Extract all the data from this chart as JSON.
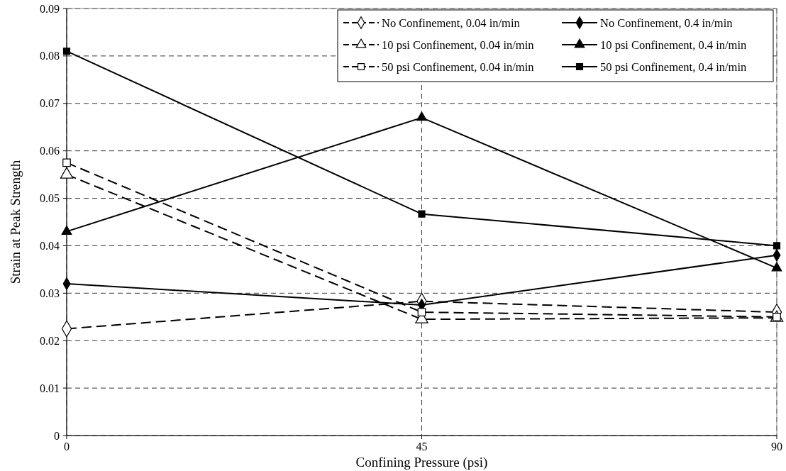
{
  "chart_data": {
    "type": "line",
    "xlabel": "Confining Pressure (psi)",
    "ylabel": "Strain at Peak Strength",
    "x": [
      0,
      45,
      90
    ],
    "xlim": [
      0,
      90
    ],
    "xticks": [
      0,
      45,
      90
    ],
    "ylim": [
      0,
      0.09
    ],
    "yticks": [
      0,
      0.01,
      0.02,
      0.03,
      0.04,
      0.05,
      0.06,
      0.07,
      0.08,
      0.09
    ],
    "grid": true,
    "legend": "top right",
    "series": [
      {
        "name": "No Confinement, 0.04 in/min",
        "color": "#000000",
        "marker": "diamond",
        "line_style": "dashed",
        "values": [
          0.0225,
          0.0283,
          0.026
        ]
      },
      {
        "name": "No Confinement, 0.4 in/min",
        "color": "#000000",
        "marker": "diamond",
        "line_style": "solid",
        "values": [
          0.032,
          0.0275,
          0.038
        ]
      },
      {
        "name": "10 psi Confinement, 0.04 in/min",
        "color": "#000000",
        "marker": "triangle",
        "line_style": "dashed",
        "values": [
          0.055,
          0.0245,
          0.0248
        ]
      },
      {
        "name": "10 psi Confinement, 0.4 in/min",
        "color": "#000000",
        "marker": "triangle",
        "line_style": "solid",
        "values": [
          0.043,
          0.067,
          0.0353
        ]
      },
      {
        "name": "50 psi Confinement, 0.04 in/min",
        "color": "#000000",
        "marker": "square",
        "line_style": "dashed",
        "values": [
          0.0575,
          0.026,
          0.025
        ]
      },
      {
        "name": "50 psi Confinement, 0.4 in/min",
        "color": "#000000",
        "marker": "square",
        "line_style": "solid",
        "values": [
          0.081,
          0.0467,
          0.04
        ]
      }
    ]
  }
}
